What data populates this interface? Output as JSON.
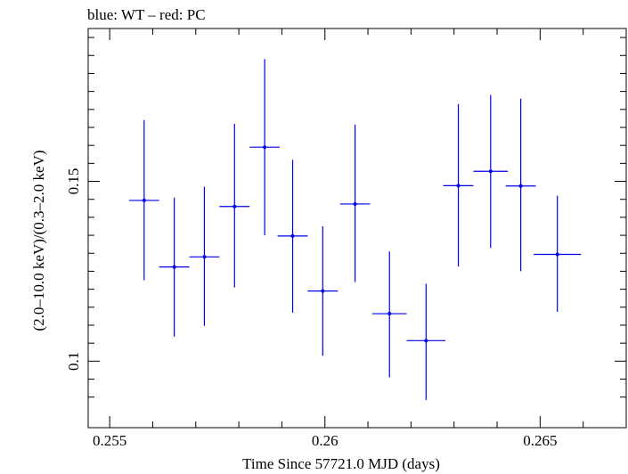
{
  "chart_data": {
    "type": "scatter",
    "title": "blue: WT – red: PC",
    "xlabel": "Time Since 57721.0 MJD (days)",
    "ylabel": "(2.0–10.0 keV)/(0.3–2.0 keV)",
    "xlim": [
      0.2545,
      0.267
    ],
    "ylim": [
      0.0815,
      0.1925
    ],
    "x_ticks": [
      {
        "value": 0.255,
        "label": "0.255"
      },
      {
        "value": 0.26,
        "label": "0.26"
      },
      {
        "value": 0.265,
        "label": "0.265"
      }
    ],
    "y_ticks": [
      {
        "value": 0.1,
        "label": "0.1"
      },
      {
        "value": 0.15,
        "label": "0.15"
      }
    ],
    "grid": false,
    "marker_color": "#0000ee",
    "series": [
      {
        "points": [
          {
            "x": 0.2558,
            "xerr": 0.00035,
            "y": 0.1447,
            "y_low": 0.1225,
            "y_high": 0.167
          },
          {
            "x": 0.2565,
            "xerr": 0.00035,
            "y": 0.1262,
            "y_low": 0.1068,
            "y_high": 0.1455
          },
          {
            "x": 0.2572,
            "xerr": 0.00035,
            "y": 0.129,
            "y_low": 0.1098,
            "y_high": 0.1485
          },
          {
            "x": 0.2579,
            "xerr": 0.00035,
            "y": 0.143,
            "y_low": 0.1205,
            "y_high": 0.166
          },
          {
            "x": 0.2586,
            "xerr": 0.00035,
            "y": 0.1595,
            "y_low": 0.135,
            "y_high": 0.184
          },
          {
            "x": 0.25925,
            "xerr": 0.00035,
            "y": 0.1348,
            "y_low": 0.1135,
            "y_high": 0.156
          },
          {
            "x": 0.25995,
            "xerr": 0.00035,
            "y": 0.1195,
            "y_low": 0.1015,
            "y_high": 0.1375
          },
          {
            "x": 0.2607,
            "xerr": 0.00035,
            "y": 0.1437,
            "y_low": 0.122,
            "y_high": 0.1658
          },
          {
            "x": 0.2615,
            "xerr": 0.0004,
            "y": 0.1132,
            "y_low": 0.0955,
            "y_high": 0.1305
          },
          {
            "x": 0.26235,
            "xerr": 0.00045,
            "y": 0.1057,
            "y_low": 0.0892,
            "y_high": 0.1215
          },
          {
            "x": 0.2631,
            "xerr": 0.00035,
            "y": 0.1488,
            "y_low": 0.1263,
            "y_high": 0.1715
          },
          {
            "x": 0.26385,
            "xerr": 0.0004,
            "y": 0.1528,
            "y_low": 0.1315,
            "y_high": 0.174
          },
          {
            "x": 0.26455,
            "xerr": 0.00035,
            "y": 0.1487,
            "y_low": 0.125,
            "y_high": 0.173
          },
          {
            "x": 0.2654,
            "xerr": 0.00055,
            "y": 0.1297,
            "y_low": 0.1137,
            "y_high": 0.146
          }
        ]
      }
    ]
  }
}
